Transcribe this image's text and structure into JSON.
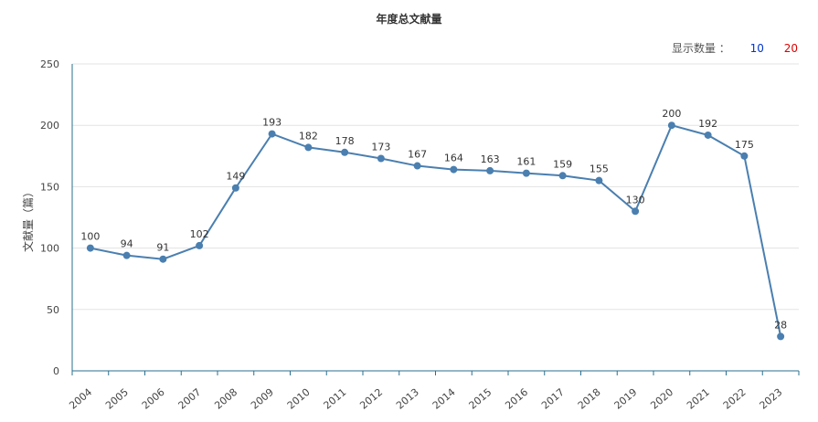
{
  "chart_data": {
    "type": "line",
    "title": "年度总文献量",
    "ylabel": "文献量（篇）",
    "xlabel": "",
    "ylim": [
      0,
      250
    ],
    "yticks": [
      0,
      50,
      100,
      150,
      200,
      250
    ],
    "grid": true,
    "legend": "none",
    "line_color": "#4a7fb0",
    "x": [
      "2004",
      "2005",
      "2006",
      "2007",
      "2008",
      "2009",
      "2010",
      "2011",
      "2012",
      "2013",
      "2014",
      "2015",
      "2016",
      "2017",
      "2018",
      "2019",
      "2020",
      "2021",
      "2022",
      "2023"
    ],
    "series": [
      {
        "values": [
          100,
          94,
          91,
          102,
          149,
          193,
          182,
          178,
          173,
          167,
          164,
          163,
          161,
          159,
          155,
          130,
          200,
          192,
          175,
          28
        ]
      }
    ]
  },
  "controls": {
    "count_label": "显示数量 ：",
    "option_10": "10",
    "option_20": "20"
  }
}
